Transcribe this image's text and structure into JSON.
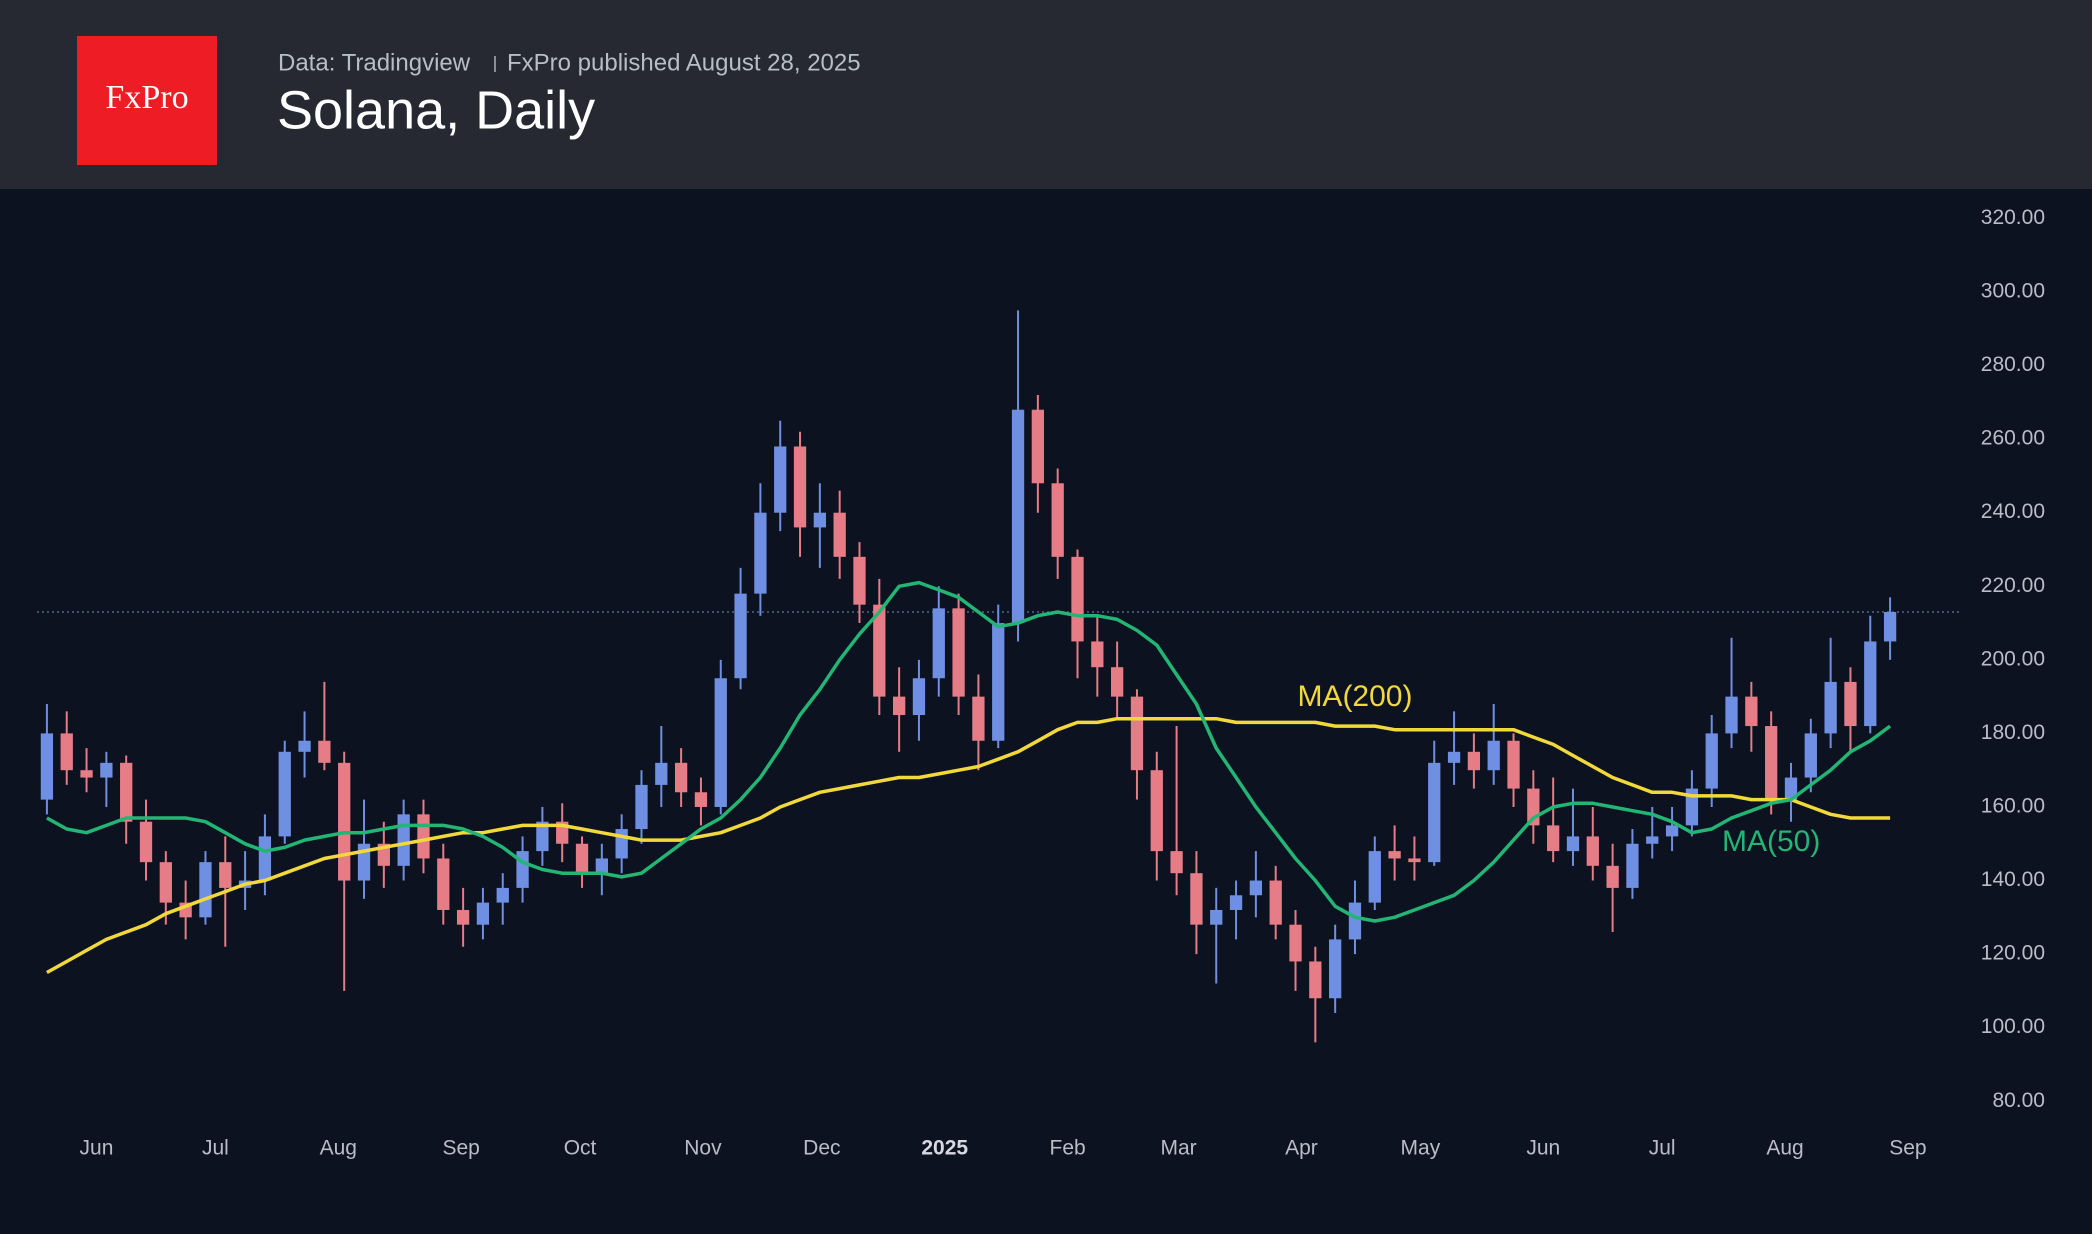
{
  "header": {
    "logo": "FxPro",
    "source": "Data: Tradingview",
    "published": "FxPro published August 28, 2025"
  },
  "chart_data": {
    "type": "candlestick",
    "title": "Solana, Daily",
    "up_color": "#6f8fe2",
    "down_color": "#e57c86",
    "open": [
      162,
      180,
      170,
      168,
      172,
      156,
      145,
      134,
      130,
      145,
      138,
      140,
      152,
      175,
      178,
      172,
      140,
      150,
      144,
      158,
      146,
      132,
      128,
      134,
      138,
      148,
      156,
      150,
      142,
      146,
      154,
      166,
      172,
      164,
      160,
      195,
      218,
      240,
      258,
      236,
      240,
      228,
      215,
      190,
      185,
      195,
      214,
      190,
      178,
      210,
      268,
      248,
      228,
      205,
      198,
      190,
      170,
      148,
      142,
      128,
      132,
      136,
      140,
      128,
      118,
      108,
      124,
      134,
      148,
      146,
      145,
      172,
      175,
      170,
      178,
      165,
      155,
      148,
      152,
      144,
      138,
      150,
      152,
      155,
      165,
      180,
      190,
      182,
      162,
      168,
      180,
      194,
      182,
      205
    ],
    "high": [
      188,
      186,
      176,
      175,
      174,
      162,
      148,
      140,
      148,
      152,
      148,
      158,
      178,
      186,
      194,
      175,
      162,
      156,
      162,
      162,
      150,
      138,
      138,
      142,
      152,
      160,
      161,
      152,
      150,
      158,
      170,
      182,
      176,
      168,
      200,
      225,
      248,
      265,
      262,
      248,
      246,
      232,
      222,
      198,
      200,
      220,
      218,
      196,
      215,
      295,
      272,
      252,
      230,
      212,
      205,
      192,
      175,
      182,
      148,
      138,
      140,
      148,
      144,
      132,
      122,
      128,
      140,
      152,
      155,
      152,
      178,
      186,
      180,
      188,
      180,
      170,
      168,
      165,
      160,
      150,
      154,
      160,
      160,
      170,
      185,
      206,
      194,
      186,
      172,
      184,
      206,
      198,
      212,
      217
    ],
    "low": [
      158,
      166,
      164,
      160,
      150,
      140,
      128,
      124,
      128,
      122,
      132,
      136,
      150,
      168,
      170,
      110,
      135,
      138,
      140,
      142,
      128,
      122,
      124,
      128,
      134,
      144,
      145,
      138,
      136,
      142,
      150,
      160,
      160,
      155,
      158,
      192,
      212,
      235,
      228,
      225,
      222,
      210,
      185,
      175,
      178,
      190,
      185,
      170,
      176,
      205,
      240,
      222,
      195,
      190,
      184,
      162,
      140,
      136,
      120,
      112,
      124,
      130,
      124,
      110,
      96,
      104,
      120,
      132,
      140,
      140,
      144,
      166,
      165,
      166,
      160,
      150,
      145,
      144,
      140,
      126,
      135,
      146,
      148,
      152,
      160,
      176,
      175,
      158,
      156,
      164,
      176,
      175,
      180,
      200
    ],
    "close": [
      180,
      170,
      168,
      172,
      156,
      145,
      134,
      130,
      145,
      138,
      140,
      152,
      175,
      178,
      172,
      140,
      150,
      144,
      158,
      146,
      132,
      128,
      134,
      138,
      148,
      156,
      150,
      142,
      146,
      154,
      166,
      172,
      164,
      160,
      195,
      218,
      240,
      258,
      236,
      240,
      228,
      215,
      190,
      185,
      195,
      214,
      190,
      178,
      210,
      268,
      248,
      228,
      205,
      198,
      190,
      170,
      148,
      142,
      128,
      132,
      136,
      140,
      128,
      118,
      108,
      124,
      134,
      148,
      146,
      145,
      172,
      175,
      170,
      178,
      165,
      155,
      148,
      152,
      144,
      138,
      150,
      152,
      155,
      165,
      180,
      190,
      182,
      162,
      168,
      180,
      194,
      182,
      205,
      213
    ],
    "series": [
      {
        "name": "MA(200)",
        "color": "#f2d93b",
        "values": [
          115,
          118,
          121,
          124,
          126,
          128,
          131,
          133,
          135,
          137,
          139,
          140,
          142,
          144,
          146,
          147,
          148,
          149,
          150,
          151,
          152,
          153,
          153,
          154,
          155,
          155,
          155,
          154,
          153,
          152,
          151,
          151,
          151,
          152,
          153,
          155,
          157,
          160,
          162,
          164,
          165,
          166,
          167,
          168,
          168,
          169,
          170,
          171,
          173,
          175,
          178,
          181,
          183,
          183,
          184,
          184,
          184,
          184,
          184,
          184,
          183,
          183,
          183,
          183,
          183,
          182,
          182,
          182,
          181,
          181,
          181,
          181,
          181,
          181,
          181,
          179,
          177,
          174,
          171,
          168,
          166,
          164,
          164,
          163,
          163,
          163,
          162,
          162,
          162,
          160,
          158,
          157,
          157,
          157
        ]
      },
      {
        "name": "MA(50)",
        "color": "#23b574",
        "values": [
          157,
          154,
          153,
          155,
          157,
          157,
          157,
          157,
          156,
          153,
          150,
          148,
          149,
          151,
          152,
          153,
          153,
          154,
          155,
          155,
          155,
          154,
          152,
          149,
          145,
          143,
          142,
          142,
          142,
          141,
          142,
          146,
          150,
          154,
          157,
          162,
          168,
          176,
          185,
          192,
          200,
          207,
          213,
          220,
          221,
          219,
          217,
          213,
          209,
          210,
          212,
          213,
          212,
          212,
          211,
          208,
          204,
          196,
          188,
          176,
          168,
          160,
          153,
          146,
          140,
          133,
          130,
          129,
          130,
          132,
          134,
          136,
          140,
          145,
          151,
          157,
          160,
          161,
          161,
          160,
          159,
          158,
          156,
          153,
          154,
          157,
          159,
          161,
          162,
          166,
          170,
          175,
          178,
          182
        ]
      }
    ],
    "xlim": [
      0,
      94
    ],
    "xticks": [
      {
        "value": 3.0,
        "label": "Jun"
      },
      {
        "value": 9.0,
        "label": "Jul"
      },
      {
        "value": 15.2,
        "label": "Aug"
      },
      {
        "value": 21.4,
        "label": "Sep"
      },
      {
        "value": 27.4,
        "label": "Oct"
      },
      {
        "value": 33.6,
        "label": "Nov"
      },
      {
        "value": 39.6,
        "label": "Dec"
      },
      {
        "value": 45.8,
        "label": "2025"
      },
      {
        "value": 52.0,
        "label": "Feb"
      },
      {
        "value": 57.6,
        "label": "Mar"
      },
      {
        "value": 63.8,
        "label": "Apr"
      },
      {
        "value": 69.8,
        "label": "May"
      },
      {
        "value": 76.0,
        "label": "Jun"
      },
      {
        "value": 82.0,
        "label": "Jul"
      },
      {
        "value": 88.2,
        "label": "Aug"
      },
      {
        "value": 94.4,
        "label": "Sep"
      }
    ],
    "ylim": [
      73,
      328
    ],
    "yticks": [
      {
        "value": 80,
        "label": "80.00"
      },
      {
        "value": 100,
        "label": "100.00"
      },
      {
        "value": 120,
        "label": "120.00"
      },
      {
        "value": 140,
        "label": "140.00"
      },
      {
        "value": 160,
        "label": "160.00"
      },
      {
        "value": 180,
        "label": "180.00"
      },
      {
        "value": 200,
        "label": "200.00"
      },
      {
        "value": 220,
        "label": "220.00"
      },
      {
        "value": 240,
        "label": "240.00"
      },
      {
        "value": 260,
        "label": "260.00"
      },
      {
        "value": 280,
        "label": "280.00"
      },
      {
        "value": 300,
        "label": "300.00"
      },
      {
        "value": 320,
        "label": "320.00"
      }
    ]
  }
}
